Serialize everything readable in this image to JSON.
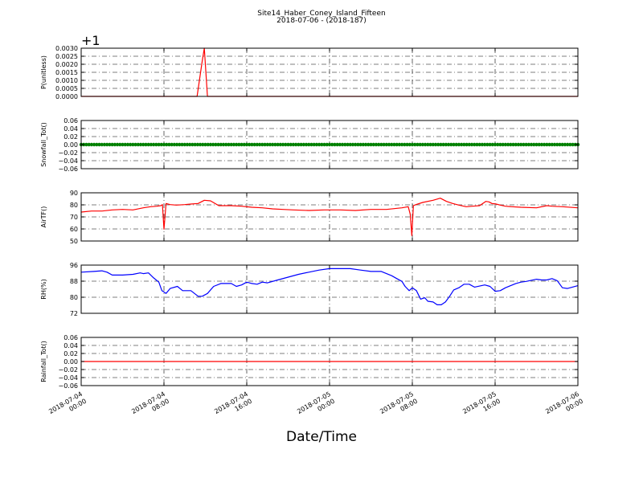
{
  "figure": {
    "title": "Site14_Haber_Coney_Island_Fifteen",
    "subtitle": "2018-07-06 - (2018-187)",
    "xlabel": "Date/Time",
    "x_tick_labels": [
      [
        "2018-07-04",
        "00:00"
      ],
      [
        "2018-07-04",
        "08:00"
      ],
      [
        "2018-07-04",
        "16:00"
      ],
      [
        "2018-07-05",
        "00:00"
      ],
      [
        "2018-07-05",
        "08:00"
      ],
      [
        "2018-07-05",
        "16:00"
      ],
      [
        "2018-07-06",
        "00:00"
      ]
    ],
    "colors": {
      "red": "#ff0000",
      "green": "#008000",
      "blue": "#0000ff"
    }
  },
  "chart_data": [
    {
      "type": "line",
      "ylabel": "P(unitless)",
      "offset_label": "+1",
      "color": "#ff0000",
      "ylim": [
        0,
        0.003
      ],
      "yticks": [
        "0.0000",
        "0.0005",
        "0.0010",
        "0.0015",
        "0.0020",
        "0.0025",
        "0.0030"
      ],
      "x_hours": [
        0,
        11.2,
        11.7,
        11.9,
        12.2,
        48
      ],
      "values": [
        0,
        0,
        0.0022,
        0.003,
        0,
        0
      ]
    },
    {
      "type": "line",
      "ylabel": "Snowfall_Tot()",
      "color": "#008000",
      "marker": "dense",
      "ylim": [
        -0.06,
        0.06
      ],
      "yticks": [
        "−0.06",
        "−0.04",
        "−0.02",
        "0.00",
        "0.02",
        "0.04",
        "0.06"
      ],
      "x_hours": [
        0,
        48
      ],
      "values": [
        0,
        0
      ]
    },
    {
      "type": "line",
      "ylabel": "AirTF()",
      "color": "#ff0000",
      "ylim": [
        45,
        90
      ],
      "yticks": [
        "50",
        "60",
        "70",
        "80",
        "90"
      ],
      "x_hours": [
        0,
        1,
        2,
        3,
        4,
        5,
        6,
        6.7,
        7.3,
        7.7,
        7.85,
        8.0,
        8.2,
        8.6,
        9.2,
        10,
        10.6,
        11.3,
        11.9,
        12.5,
        13.3,
        14.5,
        15.5,
        16.5,
        17.5,
        18.5,
        19.5,
        20.5,
        22,
        23.5,
        25,
        26.5,
        28,
        29.5,
        31,
        31.6,
        31.8,
        31.95,
        32.1,
        32.35,
        33,
        34,
        34.7,
        35.3,
        35.9,
        36.5,
        37.2,
        37.8,
        38.5,
        39.1,
        39.4,
        39.7,
        40.1,
        40.5,
        41,
        41.6,
        42.5,
        44,
        45,
        45.5,
        46.5,
        48
      ],
      "values": [
        72,
        73,
        73,
        74,
        74.5,
        74,
        76,
        77,
        77.5,
        78,
        79,
        56,
        80,
        79,
        78.5,
        79,
        79.5,
        80,
        83,
        82.5,
        78,
        78,
        77.5,
        76.5,
        76,
        75,
        74.5,
        74,
        73.5,
        74,
        74,
        73.5,
        74.5,
        74.5,
        76,
        77,
        70,
        50,
        78,
        79,
        81,
        83,
        85,
        82,
        80,
        78.5,
        77,
        77.5,
        78,
        82,
        81.5,
        80,
        79.5,
        78.5,
        77.5,
        77,
        76.5,
        76,
        78,
        77.5,
        77,
        76
      ]
    },
    {
      "type": "line",
      "ylabel": "RH(%)",
      "color": "#0000ff",
      "ylim": [
        66,
        100
      ],
      "yticks": [
        "72",
        "80",
        "88",
        "96"
      ],
      "x_hours": [
        0,
        1.2,
        2,
        2.5,
        3,
        4,
        5,
        5.7,
        6,
        6.5,
        7,
        7.5,
        7.8,
        8.2,
        8.6,
        9.3,
        9.8,
        10.6,
        11.3,
        11.7,
        12.2,
        12.8,
        13.5,
        14.5,
        15,
        15.5,
        16,
        16.5,
        17,
        17.5,
        18,
        19,
        20,
        21,
        22,
        23,
        24,
        25,
        26,
        27,
        28,
        29,
        30,
        30.5,
        31,
        31.3,
        31.7,
        32,
        32.4,
        32.8,
        33.2,
        33.5,
        34,
        34.4,
        34.8,
        35.2,
        35.6,
        36,
        36.5,
        37,
        37.5,
        38,
        39,
        39.5,
        40,
        40.5,
        41,
        41.5,
        42,
        42.5,
        43,
        44,
        44.5,
        45,
        45.5,
        46,
        46.5,
        47,
        48
      ],
      "values": [
        95,
        95.5,
        96,
        95,
        93,
        93,
        93.5,
        94.5,
        94,
        94.5,
        91,
        88,
        82,
        80,
        83.5,
        85,
        82,
        82,
        78,
        78,
        80,
        85,
        87,
        87,
        85,
        86,
        88,
        87,
        86.5,
        88,
        87.5,
        89.5,
        91.5,
        93.5,
        95,
        96.5,
        97.5,
        97.5,
        97.5,
        96.5,
        95.5,
        95.5,
        92.5,
        90.5,
        88.5,
        85,
        82,
        84,
        82,
        76,
        77,
        74.5,
        74,
        72,
        72,
        74,
        78,
        82.5,
        84,
        86.5,
        86.5,
        84.5,
        86,
        85,
        81.5,
        82,
        84,
        85.5,
        87,
        88,
        88.5,
        90,
        89.5,
        89.5,
        90.5,
        89,
        84,
        83.5,
        85.5
      ]
    },
    {
      "type": "line",
      "ylabel": "Rainfall_Tot()",
      "color": "#ff0000",
      "ylim": [
        -0.06,
        0.06
      ],
      "yticks": [
        "−0.06",
        "−0.04",
        "−0.02",
        "0.00",
        "0.02",
        "0.04",
        "0.06"
      ],
      "x_hours": [
        0,
        48
      ],
      "values": [
        0,
        0
      ]
    }
  ]
}
